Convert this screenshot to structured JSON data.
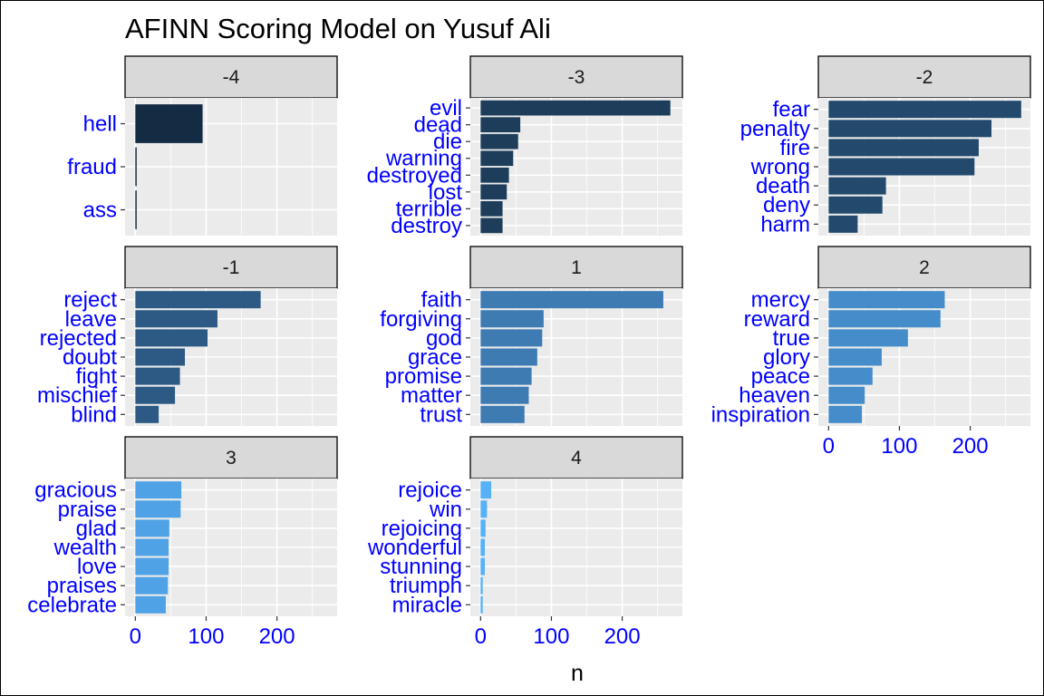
{
  "chart_data": {
    "type": "bar",
    "orientation": "horizontal",
    "title": "AFINN Scoring Model on Yusuf Ali",
    "xlabel": "n",
    "ylabel": "",
    "xlim": [
      0,
      285
    ],
    "x_ticks": [
      0,
      100,
      200
    ],
    "grid": true,
    "facets": [
      {
        "label": "-4",
        "color": "#132b43",
        "categories": [
          "hell",
          "fraud",
          "ass"
        ],
        "values": [
          95,
          1,
          1
        ]
      },
      {
        "label": "-3",
        "color": "#1d3d5b",
        "categories": [
          "evil",
          "dead",
          "die",
          "warning",
          "destroyed",
          "lost",
          "terrible",
          "destroy"
        ],
        "values": [
          268,
          56,
          53,
          46,
          40,
          37,
          31,
          31
        ]
      },
      {
        "label": "-2",
        "color": "#234a6d",
        "categories": [
          "fear",
          "penalty",
          "fire",
          "wrong",
          "death",
          "deny",
          "harm"
        ],
        "values": [
          272,
          230,
          212,
          206,
          81,
          76,
          41
        ]
      },
      {
        "label": "-1",
        "color": "#2c5a84",
        "categories": [
          "reject",
          "leave",
          "rejected",
          "doubt",
          "fight",
          "mischief",
          "blind"
        ],
        "values": [
          177,
          116,
          102,
          70,
          63,
          56,
          33
        ]
      },
      {
        "label": "1",
        "color": "#3e7bb3",
        "categories": [
          "faith",
          "forgiving",
          "god",
          "grace",
          "promise",
          "matter",
          "trust"
        ],
        "values": [
          258,
          89,
          87,
          80,
          72,
          68,
          62
        ]
      },
      {
        "label": "2",
        "color": "#448cca",
        "categories": [
          "mercy",
          "reward",
          "true",
          "glory",
          "peace",
          "heaven",
          "inspiration"
        ],
        "values": [
          164,
          158,
          112,
          75,
          62,
          51,
          47
        ]
      },
      {
        "label": "3",
        "color": "#4fa2e5",
        "categories": [
          "gracious",
          "praise",
          "glad",
          "wealth",
          "love",
          "praises",
          "celebrate"
        ],
        "values": [
          65,
          64,
          48,
          47,
          47,
          46,
          43
        ]
      },
      {
        "label": "4",
        "color": "#56b1f7",
        "categories": [
          "rejoice",
          "win",
          "rejoicing",
          "wonderful",
          "stunning",
          "triumph",
          "miracle"
        ],
        "values": [
          15,
          9,
          7,
          6,
          6,
          3,
          3
        ]
      }
    ]
  }
}
